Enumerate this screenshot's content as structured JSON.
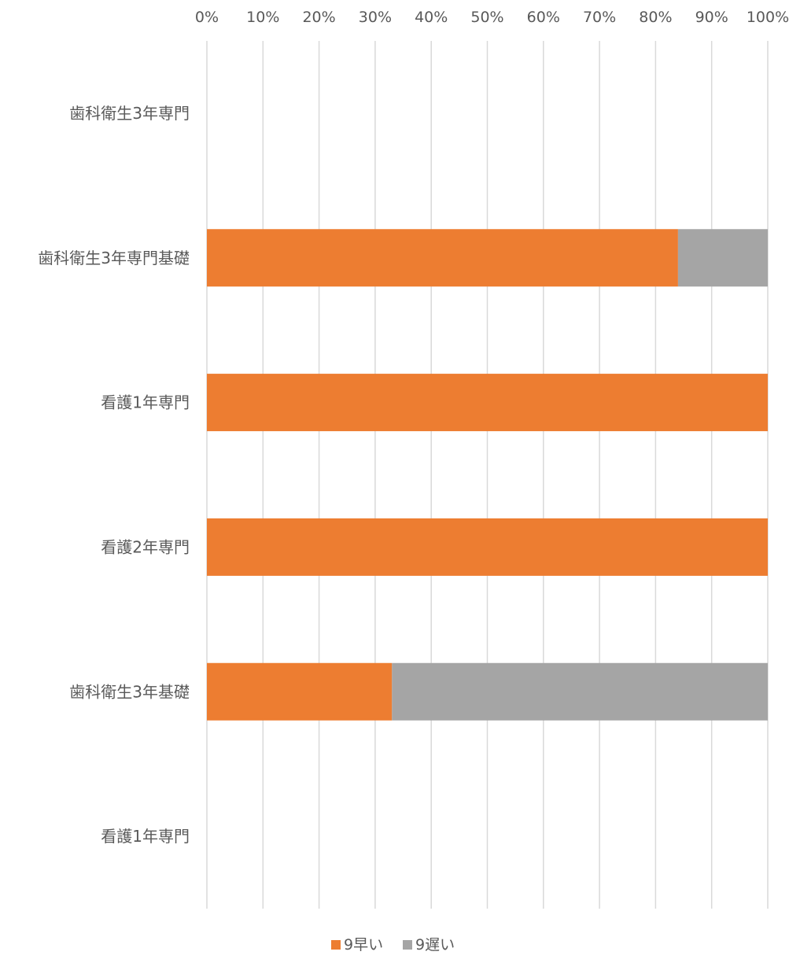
{
  "chart_data": {
    "type": "bar",
    "orientation": "horizontal",
    "stacking": "percent",
    "categories": [
      "歯科衛生3年専門",
      "歯科衛生3年専門基礎",
      "看護1年専門",
      "看護2年専門",
      "歯科衛生3年基礎",
      "看護1年専門"
    ],
    "series": [
      {
        "name": "9早い",
        "color": "#ed7d31",
        "values": [
          0,
          84,
          100,
          100,
          33,
          0
        ]
      },
      {
        "name": "9遅い",
        "color": "#a5a5a5",
        "values": [
          0,
          16,
          0,
          0,
          67,
          0
        ]
      }
    ],
    "x_ticks": [
      "0%",
      "10%",
      "20%",
      "30%",
      "40%",
      "50%",
      "60%",
      "70%",
      "80%",
      "90%",
      "100%"
    ],
    "xlim": [
      0,
      100
    ],
    "x_axis_position": "top",
    "grid": "vertical",
    "legend_position": "bottom",
    "title": "",
    "xlabel": "",
    "ylabel": ""
  }
}
